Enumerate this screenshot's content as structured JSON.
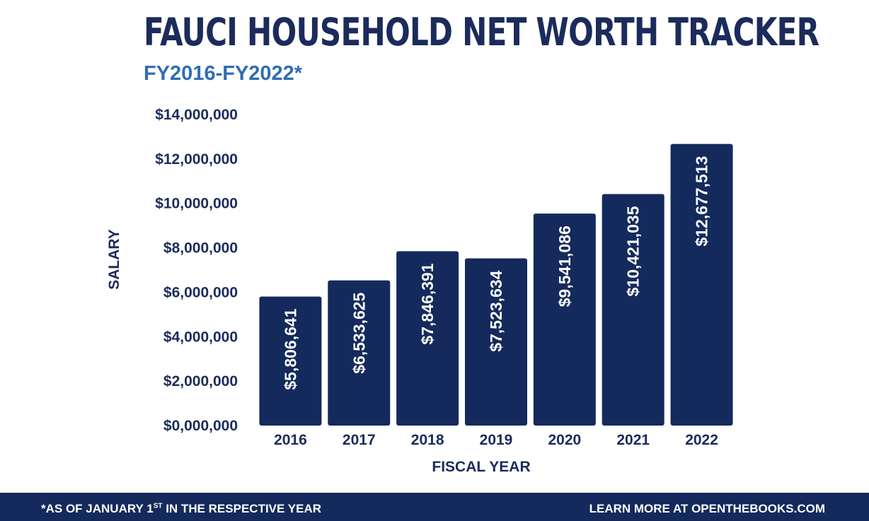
{
  "header": {
    "title": "FAUCI HOUSEHOLD NET WORTH TRACKER",
    "subtitle": "FY2016-FY2022*"
  },
  "footer": {
    "note_prefix": "*AS OF JANUARY 1",
    "note_sup": "ST",
    "note_suffix": " IN THE RESPECTIVE YEAR",
    "link_text": "LEARN MORE AT OPENTHEBOOKS.COM"
  },
  "colors": {
    "bar": "#142a5c",
    "title": "#1b2b5b",
    "subtitle": "#2f6db4",
    "footer_bg": "#142a5c"
  },
  "chart_data": {
    "type": "bar",
    "title": "FAUCI HOUSEHOLD NET WORTH TRACKER",
    "subtitle": "FY2016-FY2022*",
    "xlabel": "FISCAL YEAR",
    "ylabel": "SALARY",
    "categories": [
      "2016",
      "2017",
      "2018",
      "2019",
      "2020",
      "2021",
      "2022"
    ],
    "values": [
      5806641,
      6533625,
      7846391,
      7523634,
      9541086,
      10421035,
      12677513
    ],
    "value_labels": [
      "$5,806,641",
      "$6,533,625",
      "$7,846,391",
      "$7,523,634",
      "$9,541,086",
      "$10,421,035",
      "$12,677,513"
    ],
    "ylim": [
      0,
      14000000
    ],
    "yticks": [
      0,
      2000000,
      4000000,
      6000000,
      8000000,
      10000000,
      12000000,
      14000000
    ],
    "ytick_labels": [
      "$0,000,000",
      "$2,000,000",
      "$4,000,000",
      "$6,000,000",
      "$8,000,000",
      "$10,000,000",
      "$12,000,000",
      "$14,000,000"
    ],
    "grid": false,
    "legend": "none"
  }
}
